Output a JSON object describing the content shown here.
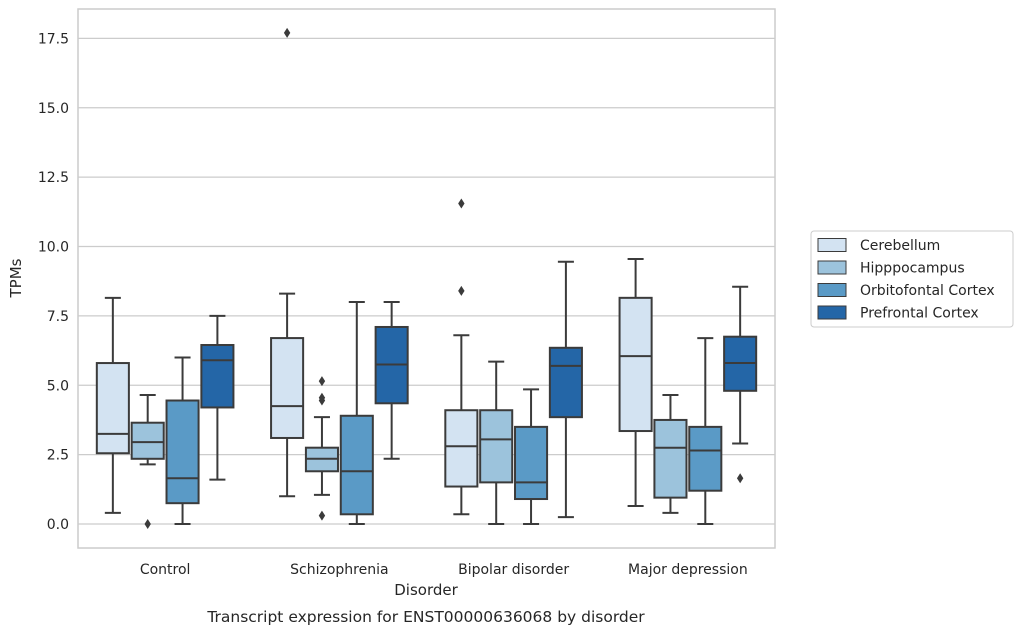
{
  "chart_data": {
    "type": "box",
    "title": "Transcript expression for ENST00000636068 by disorder",
    "xlabel": "Disorder",
    "ylabel": "TPMs",
    "ylim": [
      -0.85,
      18.6
    ],
    "yticks": [
      0.0,
      2.5,
      5.0,
      7.5,
      10.0,
      12.5,
      15.0,
      17.5
    ],
    "ytick_labels": [
      "0.0",
      "2.5",
      "5.0",
      "7.5",
      "10.0",
      "12.5",
      "15.0",
      "17.5"
    ],
    "grid": true,
    "legend_position": "right",
    "categories": [
      "Control",
      "Schizophrenia",
      "Bipolar disorder",
      "Major depression"
    ],
    "series": [
      {
        "name": "Cerebellum",
        "color": "#d3e3f2",
        "boxes": [
          {
            "whislo": 0.4,
            "q1": 2.55,
            "med": 3.25,
            "q3": 5.8,
            "whishi": 8.15,
            "fliers": []
          },
          {
            "whislo": 1.0,
            "q1": 3.1,
            "med": 4.25,
            "q3": 6.7,
            "whishi": 8.3,
            "fliers": [
              17.7
            ]
          },
          {
            "whislo": 0.35,
            "q1": 1.35,
            "med": 2.8,
            "q3": 4.1,
            "whishi": 6.8,
            "fliers": [
              8.4,
              11.55
            ]
          },
          {
            "whislo": 0.65,
            "q1": 3.35,
            "med": 6.05,
            "q3": 8.15,
            "whishi": 9.55,
            "fliers": []
          }
        ]
      },
      {
        "name": "Hipppocampus",
        "color": "#9cc3dc",
        "boxes": [
          {
            "whislo": 2.15,
            "q1": 2.35,
            "med": 2.95,
            "q3": 3.65,
            "whishi": 4.65,
            "fliers": [
              0.0
            ]
          },
          {
            "whislo": 1.05,
            "q1": 1.9,
            "med": 2.35,
            "q3": 2.75,
            "whishi": 3.85,
            "fliers": [
              0.3,
              4.45,
              4.55,
              5.15
            ]
          },
          {
            "whislo": 0.0,
            "q1": 1.5,
            "med": 3.05,
            "q3": 4.1,
            "whishi": 5.85,
            "fliers": []
          },
          {
            "whislo": 0.4,
            "q1": 0.95,
            "med": 2.75,
            "q3": 3.75,
            "whishi": 4.65,
            "fliers": []
          }
        ]
      },
      {
        "name": "Orbitofontal Cortex",
        "color": "#5a9ac6",
        "boxes": [
          {
            "whislo": 0.0,
            "q1": 0.75,
            "med": 1.65,
            "q3": 4.45,
            "whishi": 6.0,
            "fliers": []
          },
          {
            "whislo": 0.0,
            "q1": 0.35,
            "med": 1.9,
            "q3": 3.9,
            "whishi": 8.0,
            "fliers": []
          },
          {
            "whislo": 0.0,
            "q1": 0.9,
            "med": 1.5,
            "q3": 3.5,
            "whishi": 4.85,
            "fliers": []
          },
          {
            "whislo": 0.0,
            "q1": 1.2,
            "med": 2.65,
            "q3": 3.5,
            "whishi": 6.7,
            "fliers": []
          }
        ]
      },
      {
        "name": "Prefrontal Cortex",
        "color": "#2466a7",
        "boxes": [
          {
            "whislo": 1.6,
            "q1": 4.2,
            "med": 5.9,
            "q3": 6.45,
            "whishi": 7.5,
            "fliers": []
          },
          {
            "whislo": 2.35,
            "q1": 4.35,
            "med": 5.75,
            "q3": 7.1,
            "whishi": 8.0,
            "fliers": []
          },
          {
            "whislo": 0.25,
            "q1": 3.85,
            "med": 5.7,
            "q3": 6.35,
            "whishi": 9.45,
            "fliers": []
          },
          {
            "whislo": 2.9,
            "q1": 4.8,
            "med": 5.8,
            "q3": 6.75,
            "whishi": 8.55,
            "fliers": [
              1.65
            ]
          }
        ]
      }
    ]
  },
  "style": {
    "line_color": "#3b3b3b",
    "grid_color": "#cccccc",
    "frame_color": "#cccccc"
  }
}
